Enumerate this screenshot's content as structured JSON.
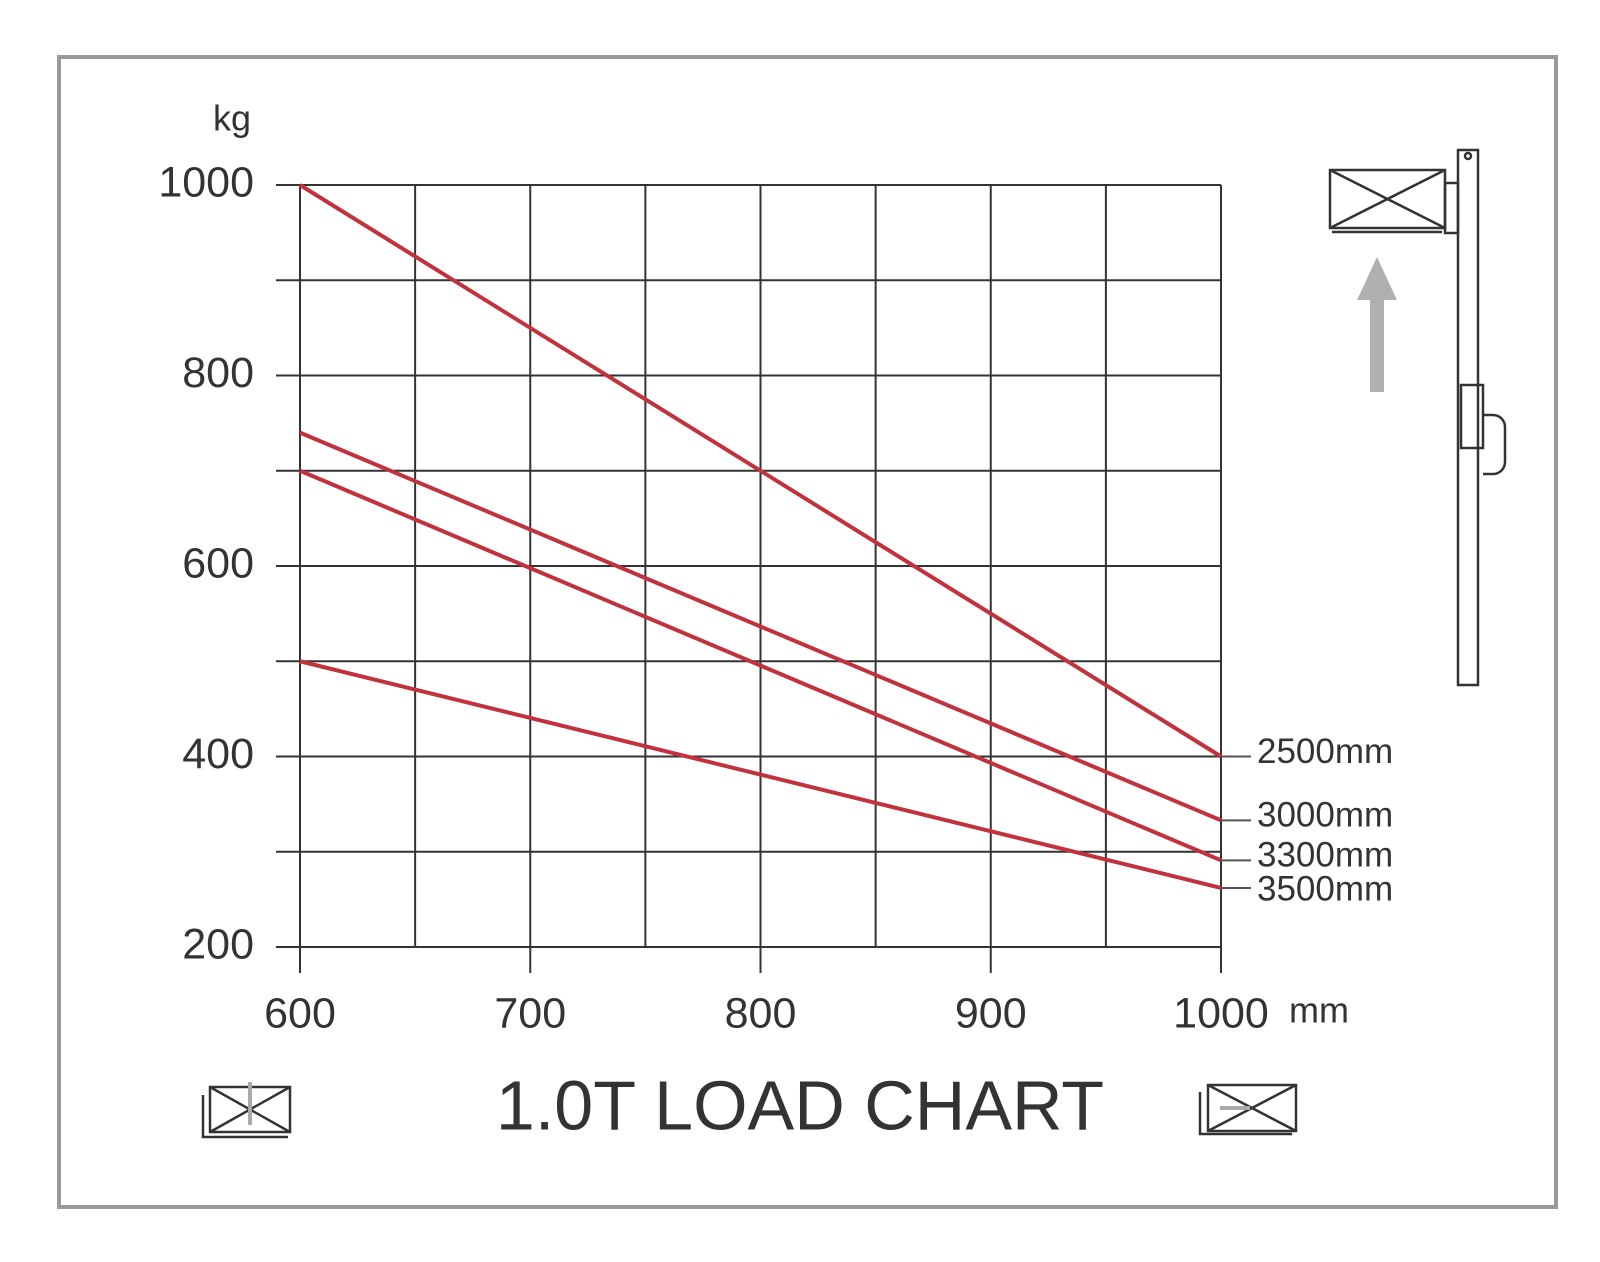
{
  "chart_data": {
    "type": "line",
    "title": "1.0T LOAD CHART",
    "y_label": "kg",
    "x_label": "mm",
    "x": [
      600,
      1000
    ],
    "xlim": [
      600,
      1000
    ],
    "xticks": [
      600,
      700,
      800,
      900,
      1000
    ],
    "xminorticks": [
      650,
      750,
      850,
      950
    ],
    "ylim": [
      200,
      1000
    ],
    "yticks": [
      200,
      400,
      600,
      800,
      1000
    ],
    "yminorticks": [
      300,
      500,
      700,
      900
    ],
    "grid": true,
    "series": [
      {
        "name": "2500mm",
        "color": "#c1323c",
        "values": [
          1000,
          400
        ]
      },
      {
        "name": "3000mm",
        "color": "#c1323c",
        "values": [
          740,
          333
        ]
      },
      {
        "name": "3300mm",
        "color": "#c1323c",
        "values": [
          700,
          291
        ]
      },
      {
        "name": "3500mm",
        "color": "#c1323c",
        "values": [
          500,
          262
        ]
      }
    ]
  }
}
